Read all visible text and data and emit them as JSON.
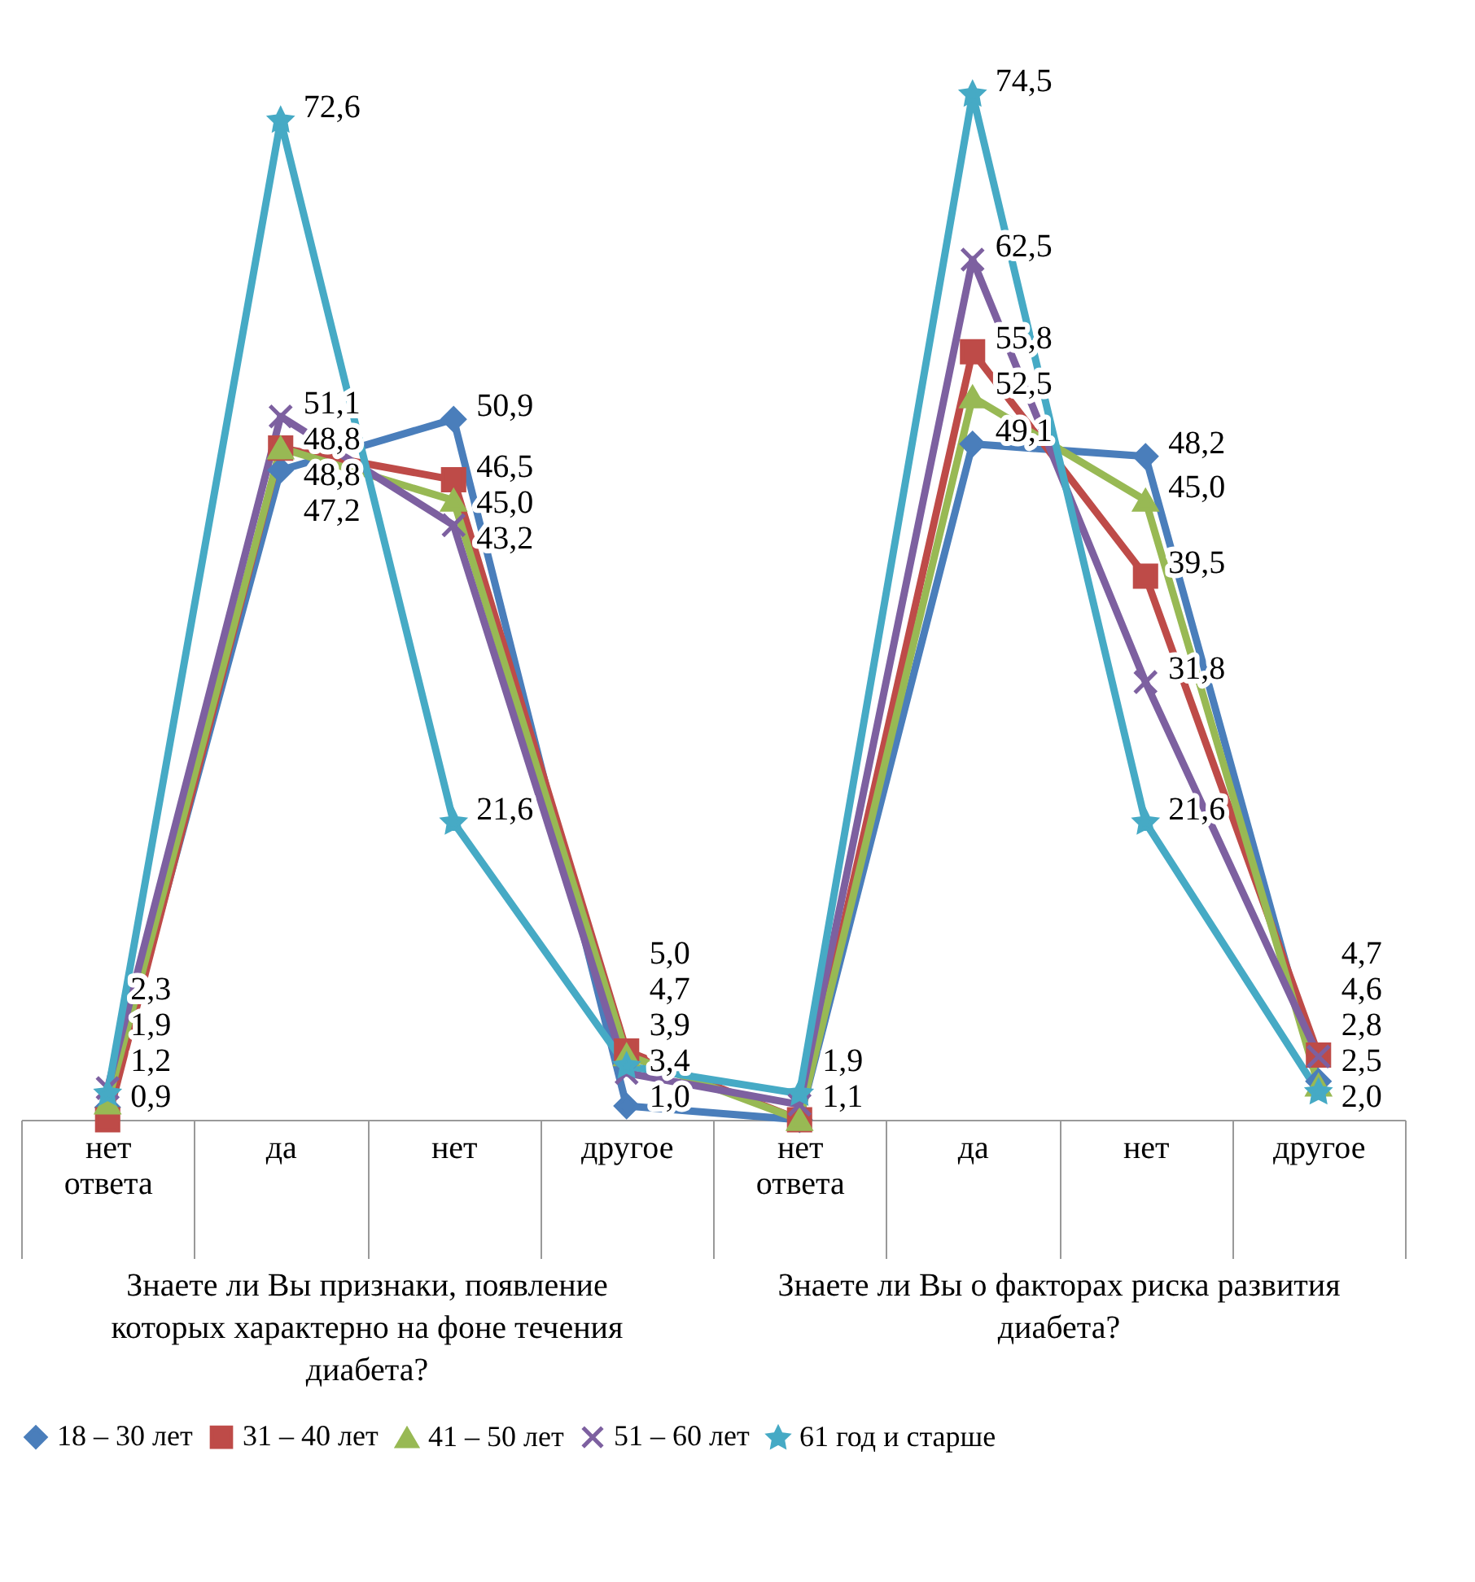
{
  "chart_data": {
    "type": "line",
    "categories": [
      "нет ответа",
      "да",
      "нет",
      "другое",
      "нет ответа",
      "да",
      "нет",
      "другое"
    ],
    "annotations": [
      "Знаете ли Вы признаки, появление которых характерно на фоне течения диабета?",
      "Знаете ли Вы о факторах риска развития диабета?"
    ],
    "legend": "bottom",
    "line_style": "solid",
    "grid": false,
    "series": [
      {
        "name": "18 – 30 лет",
        "color": "#4a7ebb",
        "marker": "diamond",
        "values": [
          0.9,
          47.2,
          50.9,
          1.0,
          0,
          49.1,
          48.2,
          2.8
        ],
        "value_labels": [
          "0,9",
          "47,2",
          "50,9",
          "1,0",
          null,
          "49,1",
          "48,2",
          "2,8"
        ]
      },
      {
        "name": "31 – 40 лет",
        "color": "#be4b48",
        "marker": "square",
        "values": [
          0,
          48.8,
          46.5,
          5.0,
          0,
          55.8,
          39.5,
          4.7
        ],
        "value_labels": [
          null,
          "48,8",
          "46,5",
          "5,0",
          null,
          "55,8",
          "39,5",
          "4,7"
        ]
      },
      {
        "name": "41 – 50 лет",
        "color": "#98b954",
        "marker": "triangle",
        "values": [
          1.2,
          48.8,
          45.0,
          4.7,
          0,
          52.5,
          45.0,
          2.5
        ],
        "value_labels": [
          "1,2",
          "48,8",
          "45,0",
          "4,7",
          null,
          "52,5",
          "45,0",
          "2,5"
        ]
      },
      {
        "name": "51 – 60 лет",
        "color": "#7d60a0",
        "marker": "cross",
        "values": [
          2.3,
          51.1,
          43.2,
          3.4,
          1.1,
          62.5,
          31.8,
          4.6
        ],
        "value_labels": [
          "2,3",
          "51,1",
          "43,2",
          "3,4",
          "1,1",
          "62,5",
          "31,8",
          "4,6"
        ]
      },
      {
        "name": "61 год и старше",
        "color": "#46aac5",
        "marker": "star",
        "values": [
          1.9,
          72.6,
          21.6,
          3.9,
          1.9,
          74.5,
          21.6,
          2.0
        ],
        "value_labels": [
          "1,9",
          "72,6",
          "21,6",
          "3,9",
          "1,9",
          "74,5",
          "21,6",
          "2,0"
        ]
      }
    ]
  }
}
